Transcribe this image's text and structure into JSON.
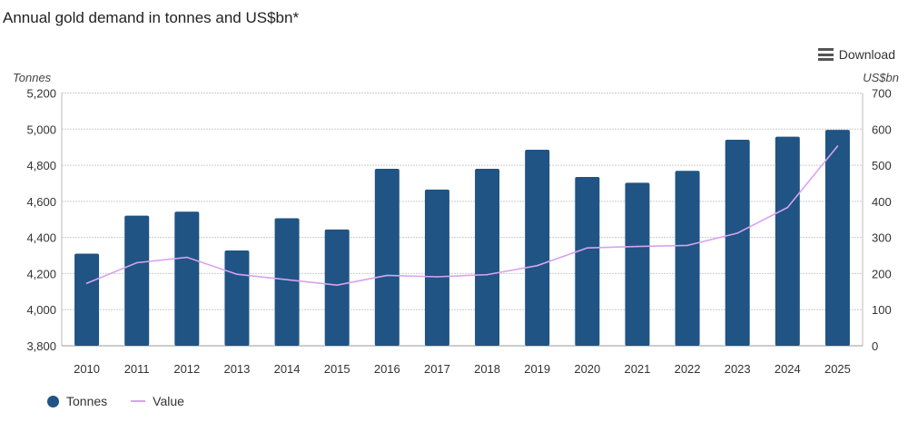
{
  "title": "Annual gold demand in tonnes and US$bn*",
  "download": {
    "label": "Download",
    "icon": "menu-icon"
  },
  "colors": {
    "bars": "#1f5484",
    "line": "#d6a3f0",
    "grid": "#cccccc"
  },
  "chart_data": {
    "type": "bar+line",
    "categories": [
      "2010",
      "2011",
      "2012",
      "2013",
      "2014",
      "2015",
      "2016",
      "2017",
      "2018",
      "2019",
      "2020",
      "2021",
      "2022",
      "2023",
      "2024",
      "2025"
    ],
    "series": [
      {
        "name": "Tonnes",
        "type": "bar",
        "axis": "left",
        "values": [
          4310,
          4521,
          4543,
          4328,
          4506,
          4444,
          4780,
          4665,
          4780,
          4886,
          4735,
          4703,
          4769,
          4941,
          4958,
          4996
        ]
      },
      {
        "name": "Value",
        "type": "line",
        "axis": "right",
        "values": [
          173,
          230,
          245,
          198,
          183,
          168,
          195,
          191,
          197,
          222,
          271,
          275,
          278,
          312,
          383,
          553
        ]
      }
    ],
    "ylabel_left": "Tonnes",
    "ylabel_right": "US$bn",
    "ylim_left": [
      3800,
      5200
    ],
    "ylim_right": [
      0,
      700
    ],
    "yticks_left": [
      "3,800",
      "4,000",
      "4,200",
      "4,400",
      "4,600",
      "4,800",
      "5,000",
      "5,200"
    ],
    "yticks_right": [
      "0",
      "100",
      "200",
      "300",
      "400",
      "500",
      "600",
      "700"
    ],
    "grid": true,
    "legend": "bottom-left"
  }
}
